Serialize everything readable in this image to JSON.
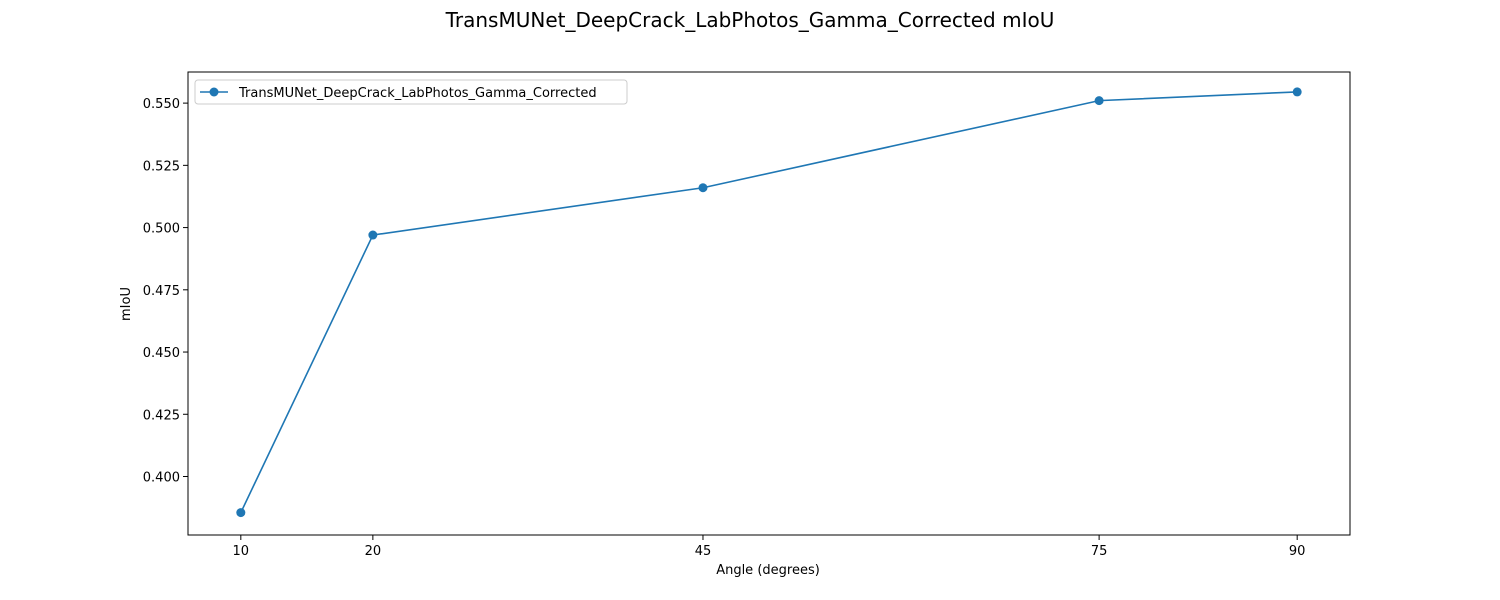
{
  "chart_data": {
    "type": "line",
    "title": "TransMUNet_DeepCrack_LabPhotos_Gamma_Corrected mIoU",
    "xlabel": "Angle (degrees)",
    "ylabel": "mIoU",
    "x": [
      10,
      20,
      45,
      75,
      90
    ],
    "x_tick_labels": [
      "10",
      "20",
      "45",
      "75",
      "90"
    ],
    "y_ticks": [
      0.4,
      0.425,
      0.45,
      0.475,
      0.5,
      0.525,
      0.55
    ],
    "y_tick_labels": [
      "0.400",
      "0.425",
      "0.450",
      "0.475",
      "0.500",
      "0.525",
      "0.550"
    ],
    "xlim": [
      6,
      94
    ],
    "ylim": [
      0.3765,
      0.5625
    ],
    "grid": false,
    "legend_position": "top-left",
    "series": [
      {
        "name": "TransMUNet_DeepCrack_LabPhotos_Gamma_Corrected",
        "color": "#1f77b4",
        "marker": "circle",
        "values": [
          0.3855,
          0.497,
          0.516,
          0.551,
          0.5545
        ]
      }
    ]
  }
}
